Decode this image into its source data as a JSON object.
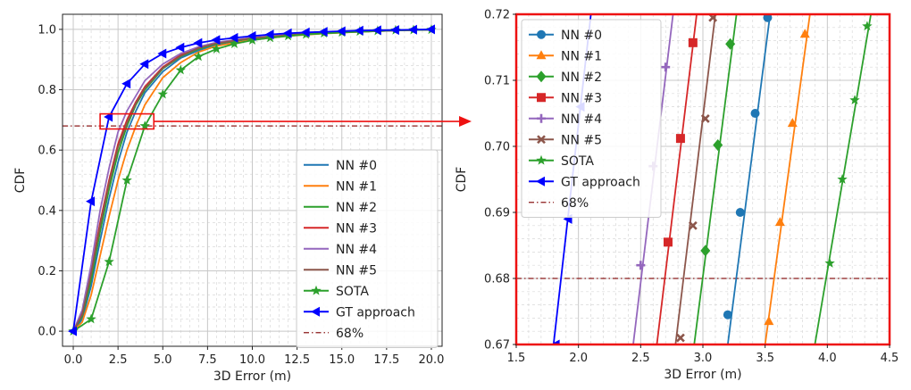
{
  "chart_data": [
    {
      "type": "line",
      "xlabel": "3D Error (m)",
      "ylabel": "CDF",
      "xlim": [
        -0.6,
        20.6
      ],
      "ylim": [
        -0.05,
        1.05
      ],
      "xticks": [
        0.0,
        2.5,
        5.0,
        7.5,
        10.0,
        12.5,
        15.0,
        17.5,
        20.0
      ],
      "xtick_labels": [
        "0.0",
        "2.5",
        "5.0",
        "7.5",
        "10.0",
        "12.5",
        "15.0",
        "17.5",
        "20.0"
      ],
      "yticks": [
        0.0,
        0.2,
        0.4,
        0.6,
        0.8,
        1.0
      ],
      "ytick_labels": [
        "0.0",
        "0.2",
        "0.4",
        "0.6",
        "0.8",
        "1.0"
      ],
      "grid": true,
      "legend": "lower-right",
      "reference_line": {
        "y": 0.68,
        "name": "68%"
      },
      "zoom_box": {
        "x": [
          1.5,
          4.5
        ],
        "y": [
          0.67,
          0.72
        ]
      },
      "series": [
        {
          "name": "NN #0",
          "color": "#1f77b4",
          "marker": "none",
          "x": [
            0,
            0.5,
            1,
            1.5,
            2,
            2.5,
            3,
            3.5,
            4,
            5,
            6,
            7,
            8,
            10,
            12,
            14,
            16,
            18,
            20
          ],
          "y": [
            0,
            0.04,
            0.15,
            0.3,
            0.44,
            0.56,
            0.66,
            0.73,
            0.79,
            0.86,
            0.905,
            0.93,
            0.95,
            0.97,
            0.98,
            0.987,
            0.992,
            0.996,
            0.999
          ]
        },
        {
          "name": "NN #1",
          "color": "#ff7f0e",
          "marker": "none",
          "x": [
            0,
            0.5,
            1,
            1.5,
            2,
            2.5,
            3,
            3.5,
            4,
            5,
            6,
            7,
            8,
            10,
            12,
            14,
            16,
            18,
            20
          ],
          "y": [
            0,
            0.03,
            0.12,
            0.25,
            0.38,
            0.5,
            0.6,
            0.68,
            0.75,
            0.84,
            0.89,
            0.925,
            0.945,
            0.965,
            0.978,
            0.986,
            0.992,
            0.996,
            0.999
          ]
        },
        {
          "name": "NN #2",
          "color": "#2ca02c",
          "marker": "none",
          "x": [
            0,
            0.5,
            1,
            1.5,
            2,
            2.5,
            3,
            3.5,
            4,
            5,
            6,
            7,
            8,
            10,
            12,
            14,
            16,
            18,
            20
          ],
          "y": [
            0,
            0.05,
            0.17,
            0.33,
            0.47,
            0.59,
            0.68,
            0.75,
            0.8,
            0.87,
            0.91,
            0.935,
            0.952,
            0.97,
            0.98,
            0.987,
            0.992,
            0.996,
            0.999
          ]
        },
        {
          "name": "NN #3",
          "color": "#d62728",
          "marker": "none",
          "x": [
            0,
            0.5,
            1,
            1.5,
            2,
            2.5,
            3,
            3.5,
            4,
            5,
            6,
            7,
            8,
            10,
            12,
            14,
            16,
            18,
            20
          ],
          "y": [
            0,
            0.06,
            0.2,
            0.36,
            0.5,
            0.62,
            0.7,
            0.76,
            0.81,
            0.875,
            0.915,
            0.94,
            0.955,
            0.972,
            0.982,
            0.988,
            0.993,
            0.996,
            0.999
          ]
        },
        {
          "name": "NN #4",
          "color": "#9467bd",
          "marker": "none",
          "x": [
            0,
            0.5,
            1,
            1.5,
            2,
            2.5,
            3,
            3.5,
            4,
            5,
            6,
            7,
            8,
            10,
            12,
            14,
            16,
            18,
            20
          ],
          "y": [
            0,
            0.07,
            0.22,
            0.4,
            0.54,
            0.66,
            0.73,
            0.78,
            0.83,
            0.885,
            0.92,
            0.942,
            0.957,
            0.973,
            0.982,
            0.988,
            0.993,
            0.996,
            0.999
          ]
        },
        {
          "name": "NN #5",
          "color": "#8c564b",
          "marker": "none",
          "x": [
            0,
            0.5,
            1,
            1.5,
            2,
            2.5,
            3,
            3.5,
            4,
            5,
            6,
            7,
            8,
            10,
            12,
            14,
            16,
            18,
            20
          ],
          "y": [
            0,
            0.055,
            0.19,
            0.35,
            0.49,
            0.61,
            0.69,
            0.755,
            0.805,
            0.872,
            0.912,
            0.938,
            0.954,
            0.971,
            0.981,
            0.988,
            0.993,
            0.996,
            0.999
          ]
        },
        {
          "name": "SOTA",
          "color": "#2ca02c",
          "marker": "star",
          "x": [
            0,
            1,
            2,
            3,
            4,
            5,
            6,
            7,
            8,
            9,
            10,
            11,
            12,
            13,
            14,
            15,
            16,
            17,
            18,
            19,
            20
          ],
          "y": [
            0,
            0.04,
            0.23,
            0.5,
            0.68,
            0.785,
            0.865,
            0.91,
            0.935,
            0.952,
            0.964,
            0.972,
            0.978,
            0.983,
            0.987,
            0.99,
            0.993,
            0.995,
            0.997,
            0.998,
            0.999
          ]
        },
        {
          "name": "GT approach",
          "color": "#0000ff",
          "marker": "triangle-left",
          "x": [
            0,
            1,
            2,
            3,
            4,
            5,
            6,
            7,
            8,
            9,
            10,
            11,
            12,
            13,
            14,
            15,
            16,
            17,
            18,
            19,
            20
          ],
          "y": [
            0,
            0.43,
            0.71,
            0.82,
            0.885,
            0.92,
            0.94,
            0.955,
            0.965,
            0.972,
            0.978,
            0.983,
            0.987,
            0.99,
            0.992,
            0.994,
            0.996,
            0.997,
            0.998,
            0.999,
            1.0
          ]
        }
      ]
    },
    {
      "type": "line",
      "xlabel": "3D Error (m)",
      "ylabel": "CDF",
      "xlim": [
        1.5,
        4.5
      ],
      "ylim": [
        0.67,
        0.72
      ],
      "xticks": [
        1.5,
        2.0,
        2.5,
        3.0,
        3.5,
        4.0,
        4.5
      ],
      "xtick_labels": [
        "1.5",
        "2.0",
        "2.5",
        "3.0",
        "3.5",
        "4.0",
        "4.5"
      ],
      "yticks": [
        0.67,
        0.68,
        0.69,
        0.7,
        0.71,
        0.72
      ],
      "ytick_labels": [
        "0.67",
        "0.68",
        "0.69",
        "0.70",
        "0.71",
        "0.72"
      ],
      "grid": true,
      "legend": "upper-left",
      "reference_line": {
        "y": 0.68,
        "name": "68%"
      },
      "series": [
        {
          "name": "NN #0",
          "color": "#1f77b4",
          "marker": "circle",
          "x": [
            3.2,
            3.54
          ],
          "y": [
            0.67,
            0.72
          ],
          "points": [
            [
              3.2,
              0.6745
            ],
            [
              3.3,
              0.69
            ],
            [
              3.42,
              0.705
            ],
            [
              3.52,
              0.7195
            ]
          ]
        },
        {
          "name": "NN #1",
          "color": "#ff7f0e",
          "marker": "triangle-up",
          "x": [
            3.5,
            3.86
          ],
          "y": [
            0.67,
            0.72
          ],
          "points": [
            [
              3.53,
              0.6735
            ],
            [
              3.62,
              0.6885
            ],
            [
              3.72,
              0.7035
            ],
            [
              3.82,
              0.717
            ]
          ]
        },
        {
          "name": "NN #2",
          "color": "#2ca02c",
          "marker": "diamond",
          "x": [
            2.93,
            3.27
          ],
          "y": [
            0.67,
            0.72
          ],
          "points": [
            [
              3.02,
              0.6842
            ],
            [
              3.12,
              0.7002
            ],
            [
              3.22,
              0.7155
            ]
          ]
        },
        {
          "name": "NN #3",
          "color": "#d62728",
          "marker": "square",
          "x": [
            2.63,
            2.95
          ],
          "y": [
            0.67,
            0.72
          ],
          "points": [
            [
              2.72,
              0.6855
            ],
            [
              2.82,
              0.7012
            ],
            [
              2.92,
              0.7157
            ]
          ]
        },
        {
          "name": "NN #4",
          "color": "#9467bd",
          "marker": "plus",
          "x": [
            2.44,
            2.76
          ],
          "y": [
            0.67,
            0.72
          ],
          "points": [
            [
              2.5,
              0.682
            ],
            [
              2.6,
              0.697
            ],
            [
              2.7,
              0.712
            ]
          ]
        },
        {
          "name": "NN #5",
          "color": "#8c564b",
          "marker": "x",
          "x": [
            2.78,
            3.1
          ],
          "y": [
            0.67,
            0.72
          ],
          "points": [
            [
              2.82,
              0.671
            ],
            [
              2.92,
              0.688
            ],
            [
              3.02,
              0.7042
            ],
            [
              3.08,
              0.7195
            ]
          ]
        },
        {
          "name": "SOTA",
          "color": "#2ca02c",
          "marker": "star",
          "x": [
            3.9,
            4.35
          ],
          "y": [
            0.67,
            0.72
          ],
          "points": [
            [
              4.02,
              0.6823
            ],
            [
              4.12,
              0.695
            ],
            [
              4.22,
              0.707
            ],
            [
              4.32,
              0.7182
            ]
          ]
        },
        {
          "name": "GT approach",
          "color": "#0000ff",
          "marker": "triangle-left",
          "x": [
            1.8,
            2.1
          ],
          "y": [
            0.67,
            0.72
          ],
          "points": [
            [
              1.82,
              0.67
            ],
            [
              1.92,
              0.689
            ],
            [
              2.02,
              0.706
            ]
          ]
        }
      ]
    }
  ]
}
